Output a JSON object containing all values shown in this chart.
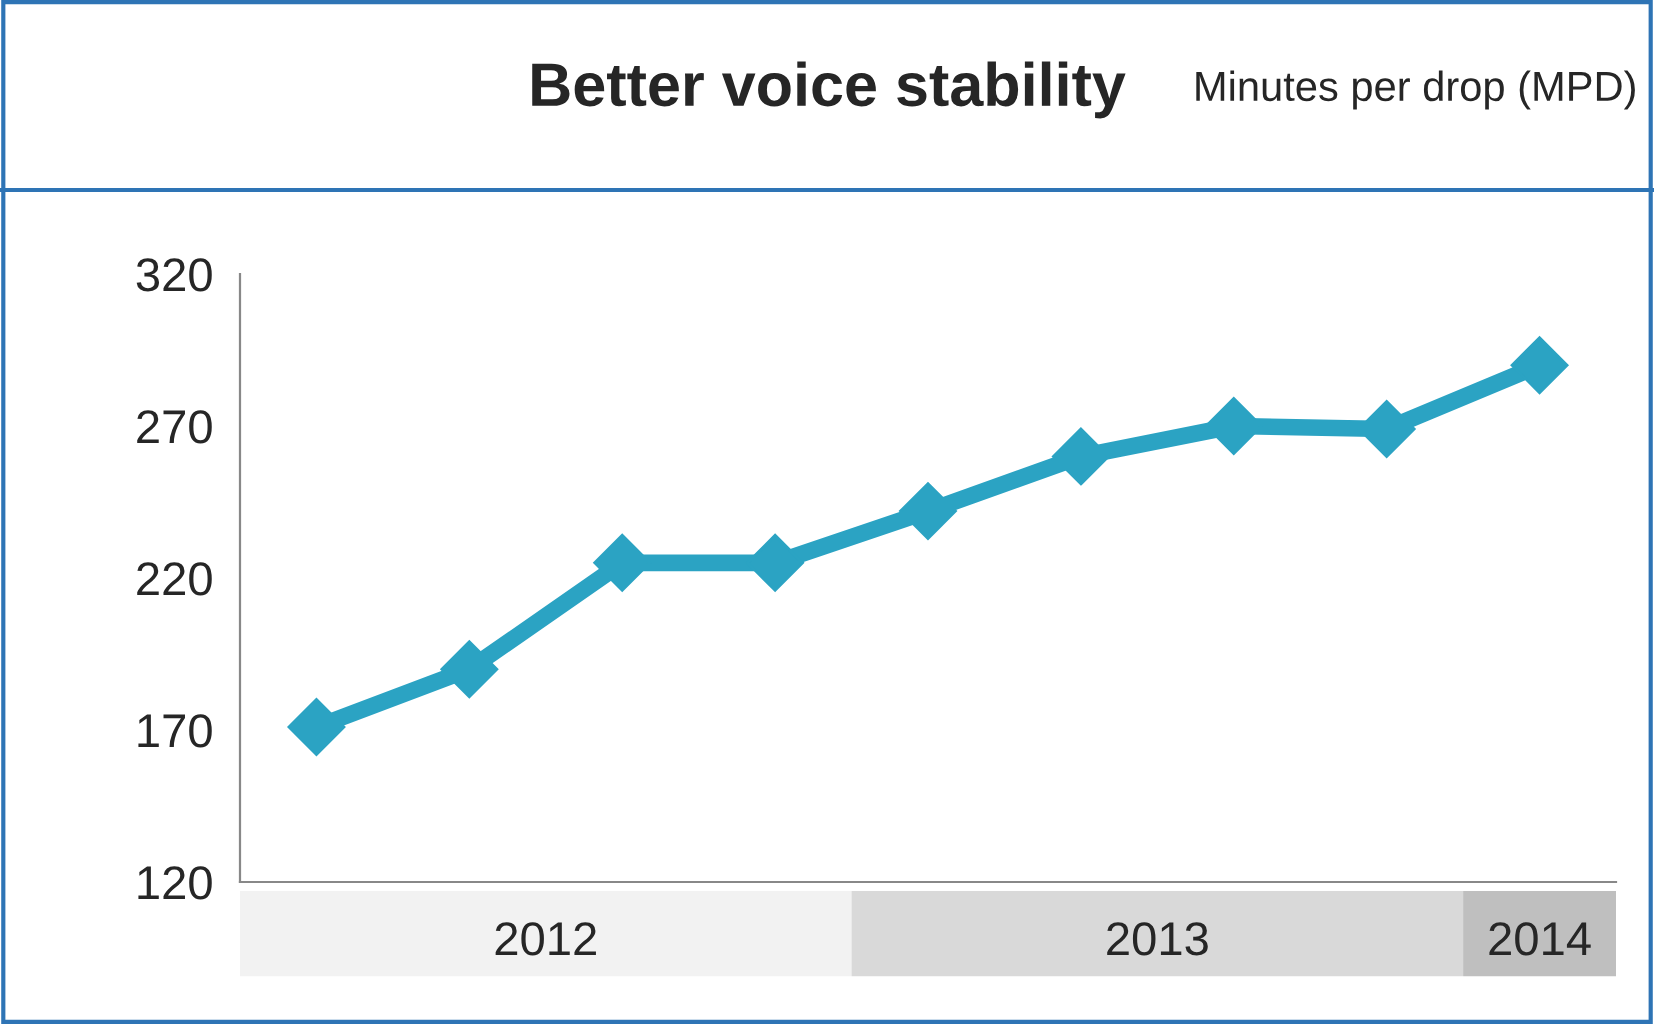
{
  "chart_data": {
    "type": "line",
    "title": "Better voice stability",
    "ylabel": "Minutes per drop (MPD)",
    "x": [
      2012,
      2012.25,
      2012.5,
      2012.75,
      2013,
      2013.25,
      2013.5,
      2013.75,
      2014
    ],
    "series": [
      {
        "color": "#2ba3c3",
        "values": [
          171,
          190,
          225,
          225,
          242,
          260,
          270,
          269,
          290
        ]
      }
    ],
    "xlim": [
      2011.875,
      2014.125
    ],
    "xticks": [
      {
        "value": 2012.375,
        "label": "2012"
      },
      {
        "value": 2013.375,
        "label": "2013"
      },
      {
        "value": 2014,
        "label": "2014"
      }
    ],
    "ylim": [
      120,
      320
    ],
    "yticks": [
      120,
      170,
      220,
      270,
      320
    ],
    "grid": false,
    "legend": false,
    "marker": "diamond",
    "line_style": "solid"
  }
}
